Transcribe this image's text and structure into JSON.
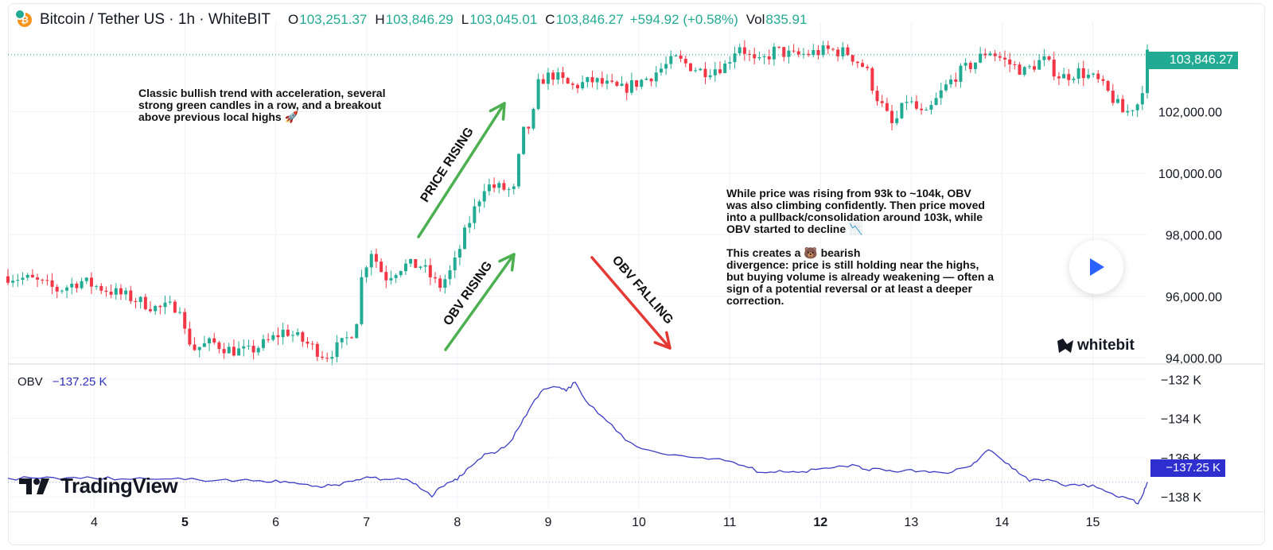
{
  "header": {
    "symbol": "Bitcoin / Tether US · 1h · WhiteBIT",
    "open_label": "O",
    "open": "103,251.37",
    "high_label": "H",
    "high": "103,846.29",
    "low_label": "L",
    "low": "103,045.01",
    "close_label": "C",
    "close": "103,846.27",
    "change": "+594.92 (+0.58%)",
    "vol_label": "Vol",
    "vol": "835.91"
  },
  "colors": {
    "up": "#22ab94",
    "down": "#f23645",
    "obv": "#3c3cc4",
    "arrow_green": "#4caf50",
    "arrow_red": "#e53935",
    "price_tag": "#22ab94",
    "obv_tag": "#2f2fd0"
  },
  "annotations": {
    "bullish": [
      "Classic bullish trend with acceleration, several",
      "strong green candles in a row, and a breakout",
      "above previous local highs 🚀"
    ],
    "price_rising": "PRICE RISING",
    "obv_rising": "OBV RISING",
    "obv_falling": "OBV FALLING",
    "divergence_1": [
      "While price was rising from 93k to ~104k, OBV",
      "was also climbing confidently. Then price moved",
      "into a pullback/consolidation around 103k, while",
      "OBV started to decline 📉"
    ],
    "divergence_2": [
      "This creates a 🐻 bearish",
      "divergence: price is still holding near the highs,",
      "but buying volume is already weakening — often a",
      "sign of a potential reversal or at least a deeper",
      "correction."
    ]
  },
  "price_last": "103,846.27",
  "obv_legend": {
    "label": "OBV",
    "value": "−137.25 K"
  },
  "obv_last": "−137.25 K",
  "logos": {
    "tradingview": "TradingView",
    "whitebit": "whitebit"
  },
  "icons": {
    "coin": "bitcoin-icon",
    "play": "play-icon"
  },
  "chart_data": [
    {
      "type": "candlestick",
      "title": "Bitcoin / Tether US · 1h · WhiteBIT",
      "x_ticks": [
        {
          "label": "4",
          "day": 4,
          "bold": false
        },
        {
          "label": "5",
          "day": 5,
          "bold": true
        },
        {
          "label": "6",
          "day": 6,
          "bold": false
        },
        {
          "label": "7",
          "day": 7,
          "bold": false
        },
        {
          "label": "8",
          "day": 8,
          "bold": false
        },
        {
          "label": "9",
          "day": 9,
          "bold": false
        },
        {
          "label": "10",
          "day": 10,
          "bold": false
        },
        {
          "label": "11",
          "day": 11,
          "bold": false
        },
        {
          "label": "12",
          "day": 12,
          "bold": true
        },
        {
          "label": "13",
          "day": 13,
          "bold": false
        },
        {
          "label": "14",
          "day": 14,
          "bold": false
        },
        {
          "label": "15",
          "day": 15,
          "bold": false
        }
      ],
      "xlim": [
        3.05,
        15.6
      ],
      "y_ticks": [
        94000,
        96000,
        98000,
        100000,
        102000
      ],
      "y_tick_labels": [
        "94,000.00",
        "96,000.00",
        "98,000.00",
        "100,000.00",
        "102,000.00"
      ],
      "ylim": [
        93800,
        104900
      ],
      "close_path": [
        [
          3.05,
          96650
        ],
        [
          3.3,
          96550
        ],
        [
          3.6,
          96200
        ],
        [
          3.85,
          96500
        ],
        [
          4.1,
          96250
        ],
        [
          4.4,
          95950
        ],
        [
          4.7,
          95600
        ],
        [
          4.95,
          95700
        ],
        [
          5.0,
          94800
        ],
        [
          5.1,
          94300
        ],
        [
          5.3,
          94500
        ],
        [
          5.5,
          94250
        ],
        [
          5.7,
          94200
        ],
        [
          5.9,
          94500
        ],
        [
          6.1,
          94900
        ],
        [
          6.35,
          94450
        ],
        [
          6.55,
          94050
        ],
        [
          6.75,
          94500
        ],
        [
          6.88,
          95000
        ],
        [
          6.95,
          96700
        ],
        [
          7.05,
          97500
        ],
        [
          7.2,
          96600
        ],
        [
          7.4,
          97000
        ],
        [
          7.6,
          97000
        ],
        [
          7.8,
          96300
        ],
        [
          7.95,
          96900
        ],
        [
          8.1,
          98200
        ],
        [
          8.3,
          99600
        ],
        [
          8.5,
          99500
        ],
        [
          8.62,
          99400
        ],
        [
          8.72,
          101300
        ],
        [
          8.82,
          101600
        ],
        [
          8.9,
          103000
        ],
        [
          9.05,
          103200
        ],
        [
          9.25,
          102800
        ],
        [
          9.5,
          103000
        ],
        [
          9.8,
          102700
        ],
        [
          10.1,
          103100
        ],
        [
          10.4,
          103700
        ],
        [
          10.7,
          103300
        ],
        [
          10.95,
          103500
        ],
        [
          11.1,
          104200
        ],
        [
          11.3,
          103500
        ],
        [
          11.5,
          104000
        ],
        [
          11.7,
          103800
        ],
        [
          11.9,
          103900
        ],
        [
          12.1,
          104000
        ],
        [
          12.3,
          103900
        ],
        [
          12.5,
          103400
        ],
        [
          12.6,
          102600
        ],
        [
          12.8,
          101500
        ],
        [
          12.95,
          102400
        ],
        [
          13.15,
          101800
        ],
        [
          13.35,
          102700
        ],
        [
          13.5,
          103200
        ],
        [
          13.7,
          103600
        ],
        [
          13.85,
          104000
        ],
        [
          14.05,
          103600
        ],
        [
          14.25,
          103300
        ],
        [
          14.45,
          103700
        ],
        [
          14.65,
          103100
        ],
        [
          14.85,
          103300
        ],
        [
          15.05,
          103000
        ],
        [
          15.2,
          102500
        ],
        [
          15.35,
          101900
        ],
        [
          15.45,
          102200
        ],
        [
          15.52,
          102300
        ],
        [
          15.6,
          103846
        ]
      ]
    },
    {
      "type": "line",
      "title": "OBV",
      "y_ticks": [
        -132,
        -134,
        -136,
        -138
      ],
      "y_tick_labels": [
        "−132 K",
        "−134 K",
        "−136 K",
        "−138 K"
      ],
      "ylim": [
        -138.6,
        -131.3
      ],
      "series": [
        {
          "name": "OBV",
          "points": [
            [
              3.05,
              -137.05
            ],
            [
              3.4,
              -137.05
            ],
            [
              3.7,
              -137.02
            ],
            [
              4.0,
              -137.05
            ],
            [
              4.3,
              -137.08
            ],
            [
              4.7,
              -137.1
            ],
            [
              5.0,
              -137.12
            ],
            [
              5.3,
              -137.18
            ],
            [
              5.6,
              -137.15
            ],
            [
              5.9,
              -137.25
            ],
            [
              6.1,
              -137.2
            ],
            [
              6.3,
              -137.35
            ],
            [
              6.5,
              -137.52
            ],
            [
              6.65,
              -137.38
            ],
            [
              6.85,
              -137.2
            ],
            [
              7.0,
              -136.98
            ],
            [
              7.2,
              -137.1
            ],
            [
              7.4,
              -137.12
            ],
            [
              7.55,
              -137.35
            ],
            [
              7.72,
              -138.0
            ],
            [
              7.82,
              -137.5
            ],
            [
              7.95,
              -137.2
            ],
            [
              8.05,
              -136.9
            ],
            [
              8.15,
              -136.45
            ],
            [
              8.3,
              -135.8
            ],
            [
              8.45,
              -135.65
            ],
            [
              8.58,
              -135.2
            ],
            [
              8.7,
              -134.3
            ],
            [
              8.82,
              -133.3
            ],
            [
              8.95,
              -132.5
            ],
            [
              9.1,
              -132.4
            ],
            [
              9.2,
              -132.6
            ],
            [
              9.3,
              -132.15
            ],
            [
              9.45,
              -133.3
            ],
            [
              9.65,
              -134.15
            ],
            [
              9.85,
              -135.1
            ],
            [
              10.1,
              -135.6
            ],
            [
              10.4,
              -135.85
            ],
            [
              10.7,
              -136.0
            ],
            [
              10.95,
              -136.15
            ],
            [
              11.15,
              -136.4
            ],
            [
              11.35,
              -136.75
            ],
            [
              11.55,
              -136.65
            ],
            [
              11.75,
              -136.75
            ],
            [
              11.95,
              -136.6
            ],
            [
              12.15,
              -136.5
            ],
            [
              12.35,
              -136.35
            ],
            [
              12.5,
              -136.6
            ],
            [
              12.65,
              -136.55
            ],
            [
              12.8,
              -136.7
            ],
            [
              13.0,
              -136.6
            ],
            [
              13.2,
              -136.75
            ],
            [
              13.4,
              -136.8
            ],
            [
              13.6,
              -136.5
            ],
            [
              13.72,
              -136.2
            ],
            [
              13.85,
              -135.6
            ],
            [
              14.0,
              -136.1
            ],
            [
              14.15,
              -136.6
            ],
            [
              14.3,
              -137.2
            ],
            [
              14.5,
              -137.1
            ],
            [
              14.7,
              -137.45
            ],
            [
              14.9,
              -137.35
            ],
            [
              15.1,
              -137.6
            ],
            [
              15.25,
              -137.95
            ],
            [
              15.4,
              -138.1
            ],
            [
              15.5,
              -138.35
            ],
            [
              15.56,
              -137.8
            ],
            [
              15.6,
              -137.25
            ]
          ]
        }
      ]
    }
  ]
}
